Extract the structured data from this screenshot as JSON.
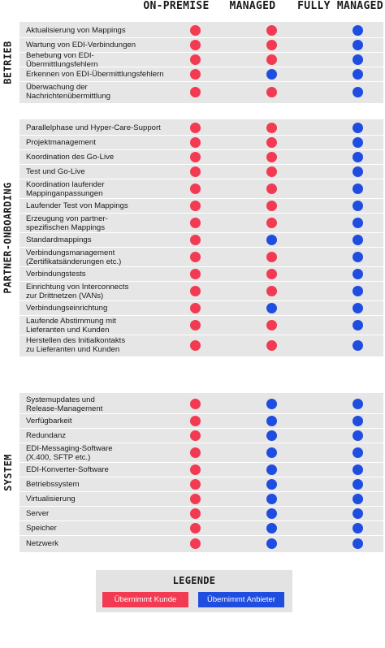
{
  "colors": {
    "kunde": "#f23b52",
    "anbieter": "#1f4de0"
  },
  "columns": [
    "ON-PREMISE",
    "MANAGED",
    "FULLY MANAGED"
  ],
  "sections": [
    {
      "label": "BETRIEB",
      "rows": [
        {
          "label": "Aktualisierung von Mappings",
          "values": [
            "kunde",
            "kunde",
            "anbieter"
          ]
        },
        {
          "label": "Wartung von EDI-Verbindungen",
          "values": [
            "kunde",
            "kunde",
            "anbieter"
          ]
        },
        {
          "label": "Behebung von EDI-Übermittlungsfehlern",
          "values": [
            "kunde",
            "kunde",
            "anbieter"
          ]
        },
        {
          "label": "Erkennen von EDI-Übermittlungsfehlern",
          "values": [
            "kunde",
            "anbieter",
            "anbieter"
          ]
        },
        {
          "label": "Überwachung der\nNachrichtenübermittlung",
          "values": [
            "kunde",
            "kunde",
            "anbieter"
          ]
        }
      ]
    },
    {
      "label": "PARTNER-ONBOARDING",
      "rows": [
        {
          "label": "Parallelphase und Hyper-Care-Support",
          "values": [
            "kunde",
            "kunde",
            "anbieter"
          ]
        },
        {
          "label": "Projektmanagement",
          "values": [
            "kunde",
            "kunde",
            "anbieter"
          ]
        },
        {
          "label": "Koordination des Go-Live",
          "values": [
            "kunde",
            "kunde",
            "anbieter"
          ]
        },
        {
          "label": "Test und Go-Live",
          "values": [
            "kunde",
            "kunde",
            "anbieter"
          ]
        },
        {
          "label": "Koordination laufender\nMappinganpassungen",
          "values": [
            "kunde",
            "kunde",
            "anbieter"
          ]
        },
        {
          "label": "Laufender Test von Mappings",
          "values": [
            "kunde",
            "kunde",
            "anbieter"
          ]
        },
        {
          "label": "Erzeugung von partner-\nspezifischen Mappings",
          "values": [
            "kunde",
            "kunde",
            "anbieter"
          ]
        },
        {
          "label": "Standardmappings",
          "values": [
            "kunde",
            "anbieter",
            "anbieter"
          ]
        },
        {
          "label": "Verbindungsmanagement\n(Zertifikatsänderungen etc.)",
          "values": [
            "kunde",
            "kunde",
            "anbieter"
          ]
        },
        {
          "label": "Verbindungstests",
          "values": [
            "kunde",
            "kunde",
            "anbieter"
          ]
        },
        {
          "label": "Einrichtung von Interconnects\nzur Drittnetzen (VANs)",
          "values": [
            "kunde",
            "kunde",
            "anbieter"
          ]
        },
        {
          "label": "Verbindungseinrichtung",
          "values": [
            "kunde",
            "anbieter",
            "anbieter"
          ]
        },
        {
          "label": "Laufende Abstimmung mit\nLieferanten und Kunden",
          "values": [
            "kunde",
            "kunde",
            "anbieter"
          ]
        },
        {
          "label": "Herstellen des Initialkontakts\nzu Lieferanten und Kunden",
          "values": [
            "kunde",
            "kunde",
            "anbieter"
          ]
        }
      ]
    },
    {
      "label": "SYSTEM",
      "rows": [
        {
          "label": "Systemupdates und\nRelease-Management",
          "values": [
            "kunde",
            "anbieter",
            "anbieter"
          ]
        },
        {
          "label": "Verfügbarkeit",
          "values": [
            "kunde",
            "anbieter",
            "anbieter"
          ]
        },
        {
          "label": "Redundanz",
          "values": [
            "kunde",
            "anbieter",
            "anbieter"
          ]
        },
        {
          "label": "EDI-Messaging-Software\n(X.400, SFTP etc.)",
          "values": [
            "kunde",
            "anbieter",
            "anbieter"
          ]
        },
        {
          "label": "EDI-Konverter-Software",
          "values": [
            "kunde",
            "anbieter",
            "anbieter"
          ]
        },
        {
          "label": "Betriebssystem",
          "values": [
            "kunde",
            "anbieter",
            "anbieter"
          ]
        },
        {
          "label": "Virtualisierung",
          "values": [
            "kunde",
            "anbieter",
            "anbieter"
          ]
        },
        {
          "label": "Server",
          "values": [
            "kunde",
            "anbieter",
            "anbieter"
          ]
        },
        {
          "label": "Speicher",
          "values": [
            "kunde",
            "anbieter",
            "anbieter"
          ]
        },
        {
          "label": "Netzwerk",
          "values": [
            "kunde",
            "anbieter",
            "anbieter"
          ]
        }
      ]
    }
  ],
  "legend": {
    "title": "LEGENDE",
    "kunde": "Übernimmt Kunde",
    "anbieter": "Übernimmt Anbieter"
  }
}
